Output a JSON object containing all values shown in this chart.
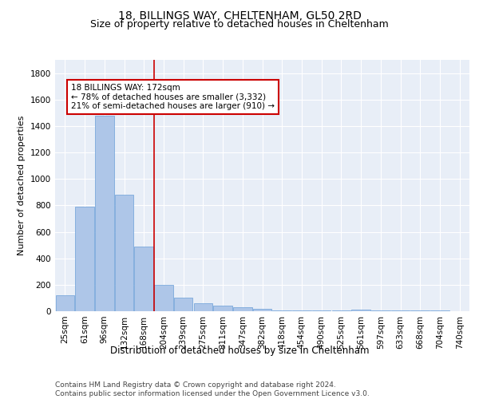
{
  "title1": "18, BILLINGS WAY, CHELTENHAM, GL50 2RD",
  "title2": "Size of property relative to detached houses in Cheltenham",
  "xlabel": "Distribution of detached houses by size in Cheltenham",
  "ylabel": "Number of detached properties",
  "categories": [
    "25sqm",
    "61sqm",
    "96sqm",
    "132sqm",
    "168sqm",
    "204sqm",
    "239sqm",
    "275sqm",
    "311sqm",
    "347sqm",
    "382sqm",
    "418sqm",
    "454sqm",
    "490sqm",
    "525sqm",
    "561sqm",
    "597sqm",
    "633sqm",
    "668sqm",
    "704sqm",
    "740sqm"
  ],
  "values": [
    120,
    790,
    1480,
    880,
    490,
    200,
    105,
    60,
    40,
    30,
    20,
    8,
    6,
    5,
    5,
    10,
    4,
    4,
    4,
    4,
    0
  ],
  "bar_color": "#aec6e8",
  "bar_edge_color": "#6a9fd8",
  "bar_edge_width": 0.5,
  "vline_x": 4.5,
  "vline_color": "#cc0000",
  "annotation_text": "18 BILLINGS WAY: 172sqm\n← 78% of detached houses are smaller (3,332)\n21% of semi-detached houses are larger (910) →",
  "annotation_box_color": "#ffffff",
  "annotation_box_edge": "#cc0000",
  "ylim": [
    0,
    1900
  ],
  "yticks": [
    0,
    200,
    400,
    600,
    800,
    1000,
    1200,
    1400,
    1600,
    1800
  ],
  "plot_bg_color": "#e8eef7",
  "footer_text": "Contains HM Land Registry data © Crown copyright and database right 2024.\nContains public sector information licensed under the Open Government Licence v3.0.",
  "title1_fontsize": 10,
  "title2_fontsize": 9,
  "xlabel_fontsize": 8.5,
  "ylabel_fontsize": 8,
  "tick_fontsize": 7.5,
  "annotation_fontsize": 7.5,
  "footer_fontsize": 6.5
}
